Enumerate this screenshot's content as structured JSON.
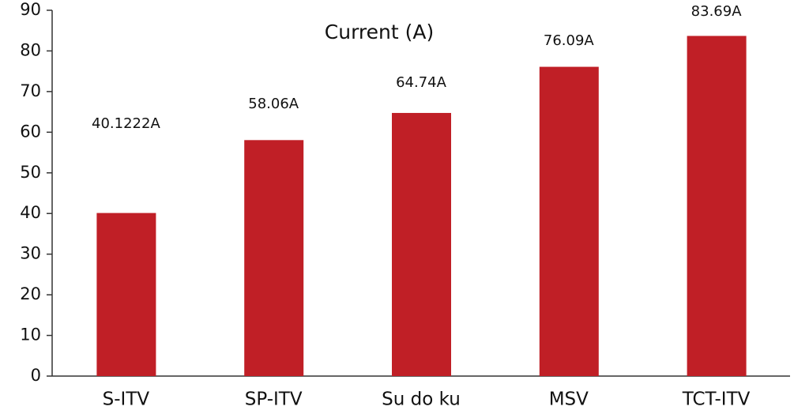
{
  "chart_data": {
    "type": "bar",
    "title": "Current (A)",
    "categories": [
      "S-ITV",
      "SP-ITV",
      "Su do ku",
      "MSV",
      "TCT-ITV"
    ],
    "values": [
      40.1222,
      58.06,
      64.74,
      76.09,
      83.69
    ],
    "value_labels": [
      "40.1222A",
      "58.06A",
      "64.74A",
      "76.09A",
      "83.69A"
    ],
    "color": "#c01f26",
    "ylim": [
      0,
      90
    ],
    "yticks": [
      0,
      10,
      20,
      30,
      40,
      50,
      60,
      70,
      80,
      90
    ],
    "grid": false
  }
}
